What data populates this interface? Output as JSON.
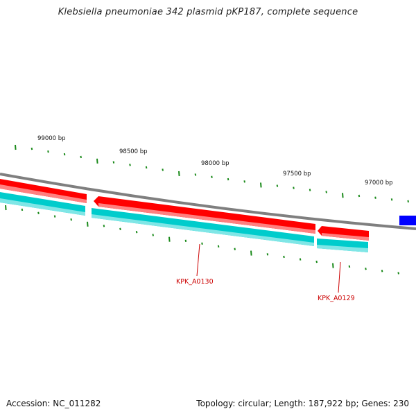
{
  "title": "Klebsiella pneumoniae 342 plasmid pKP187, complete sequence",
  "footer": {
    "accession": "Accession: NC_011282",
    "summary": "Topology: circular; Length: 187,922 bp; Genes: 230"
  },
  "scale_labels": [
    "99000 bp",
    "98500 bp",
    "98000 bp",
    "97500 bp",
    "97000 bp"
  ],
  "genes": [
    {
      "label": "KPK_A0130"
    },
    {
      "label": "KPK_A0129"
    }
  ],
  "colors": {
    "backbone": "#7f7f7f",
    "gene_red": "#ff0000",
    "gene_cyan": "#00cccc",
    "blue_feature": "#0000ff",
    "ticks": "#1a8a1a",
    "label_red": "#cc0000"
  }
}
